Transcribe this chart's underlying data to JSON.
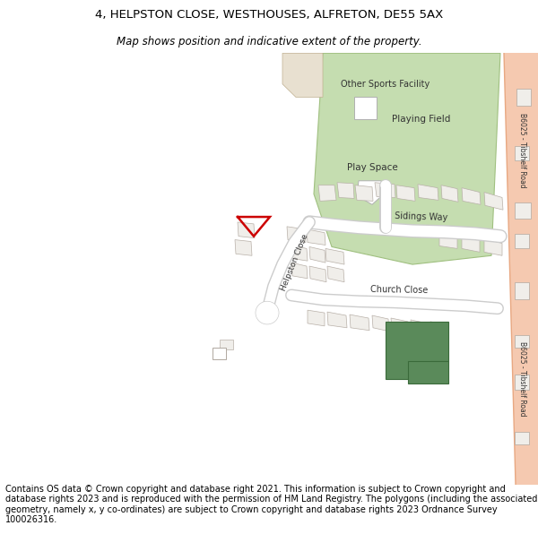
{
  "title_line1": "4, HELPSTON CLOSE, WESTHOUSES, ALFRETON, DE55 5AX",
  "title_line2": "Map shows position and indicative extent of the property.",
  "footer_text": "Contains OS data © Crown copyright and database right 2021. This information is subject to Crown copyright and database rights 2023 and is reproduced with the permission of HM Land Registry. The polygons (including the associated geometry, namely x, y co-ordinates) are subject to Crown copyright and database rights 2023 Ordnance Survey 100026316.",
  "bg_color": "#ffffff",
  "road_color": "#f5c9b0",
  "road_edge_color": "#e8a882",
  "green_area_color": "#c5ddb0",
  "green_area_edge": "#a0c080",
  "dark_green_color": "#5a8a5a",
  "building_fill": "#e0dbd5",
  "building_edge": "#b0a8a0",
  "marker_color": "#cc0000",
  "cream_bldg_color": "#e8e0d0",
  "white_bldg_color": "#f0eeea"
}
